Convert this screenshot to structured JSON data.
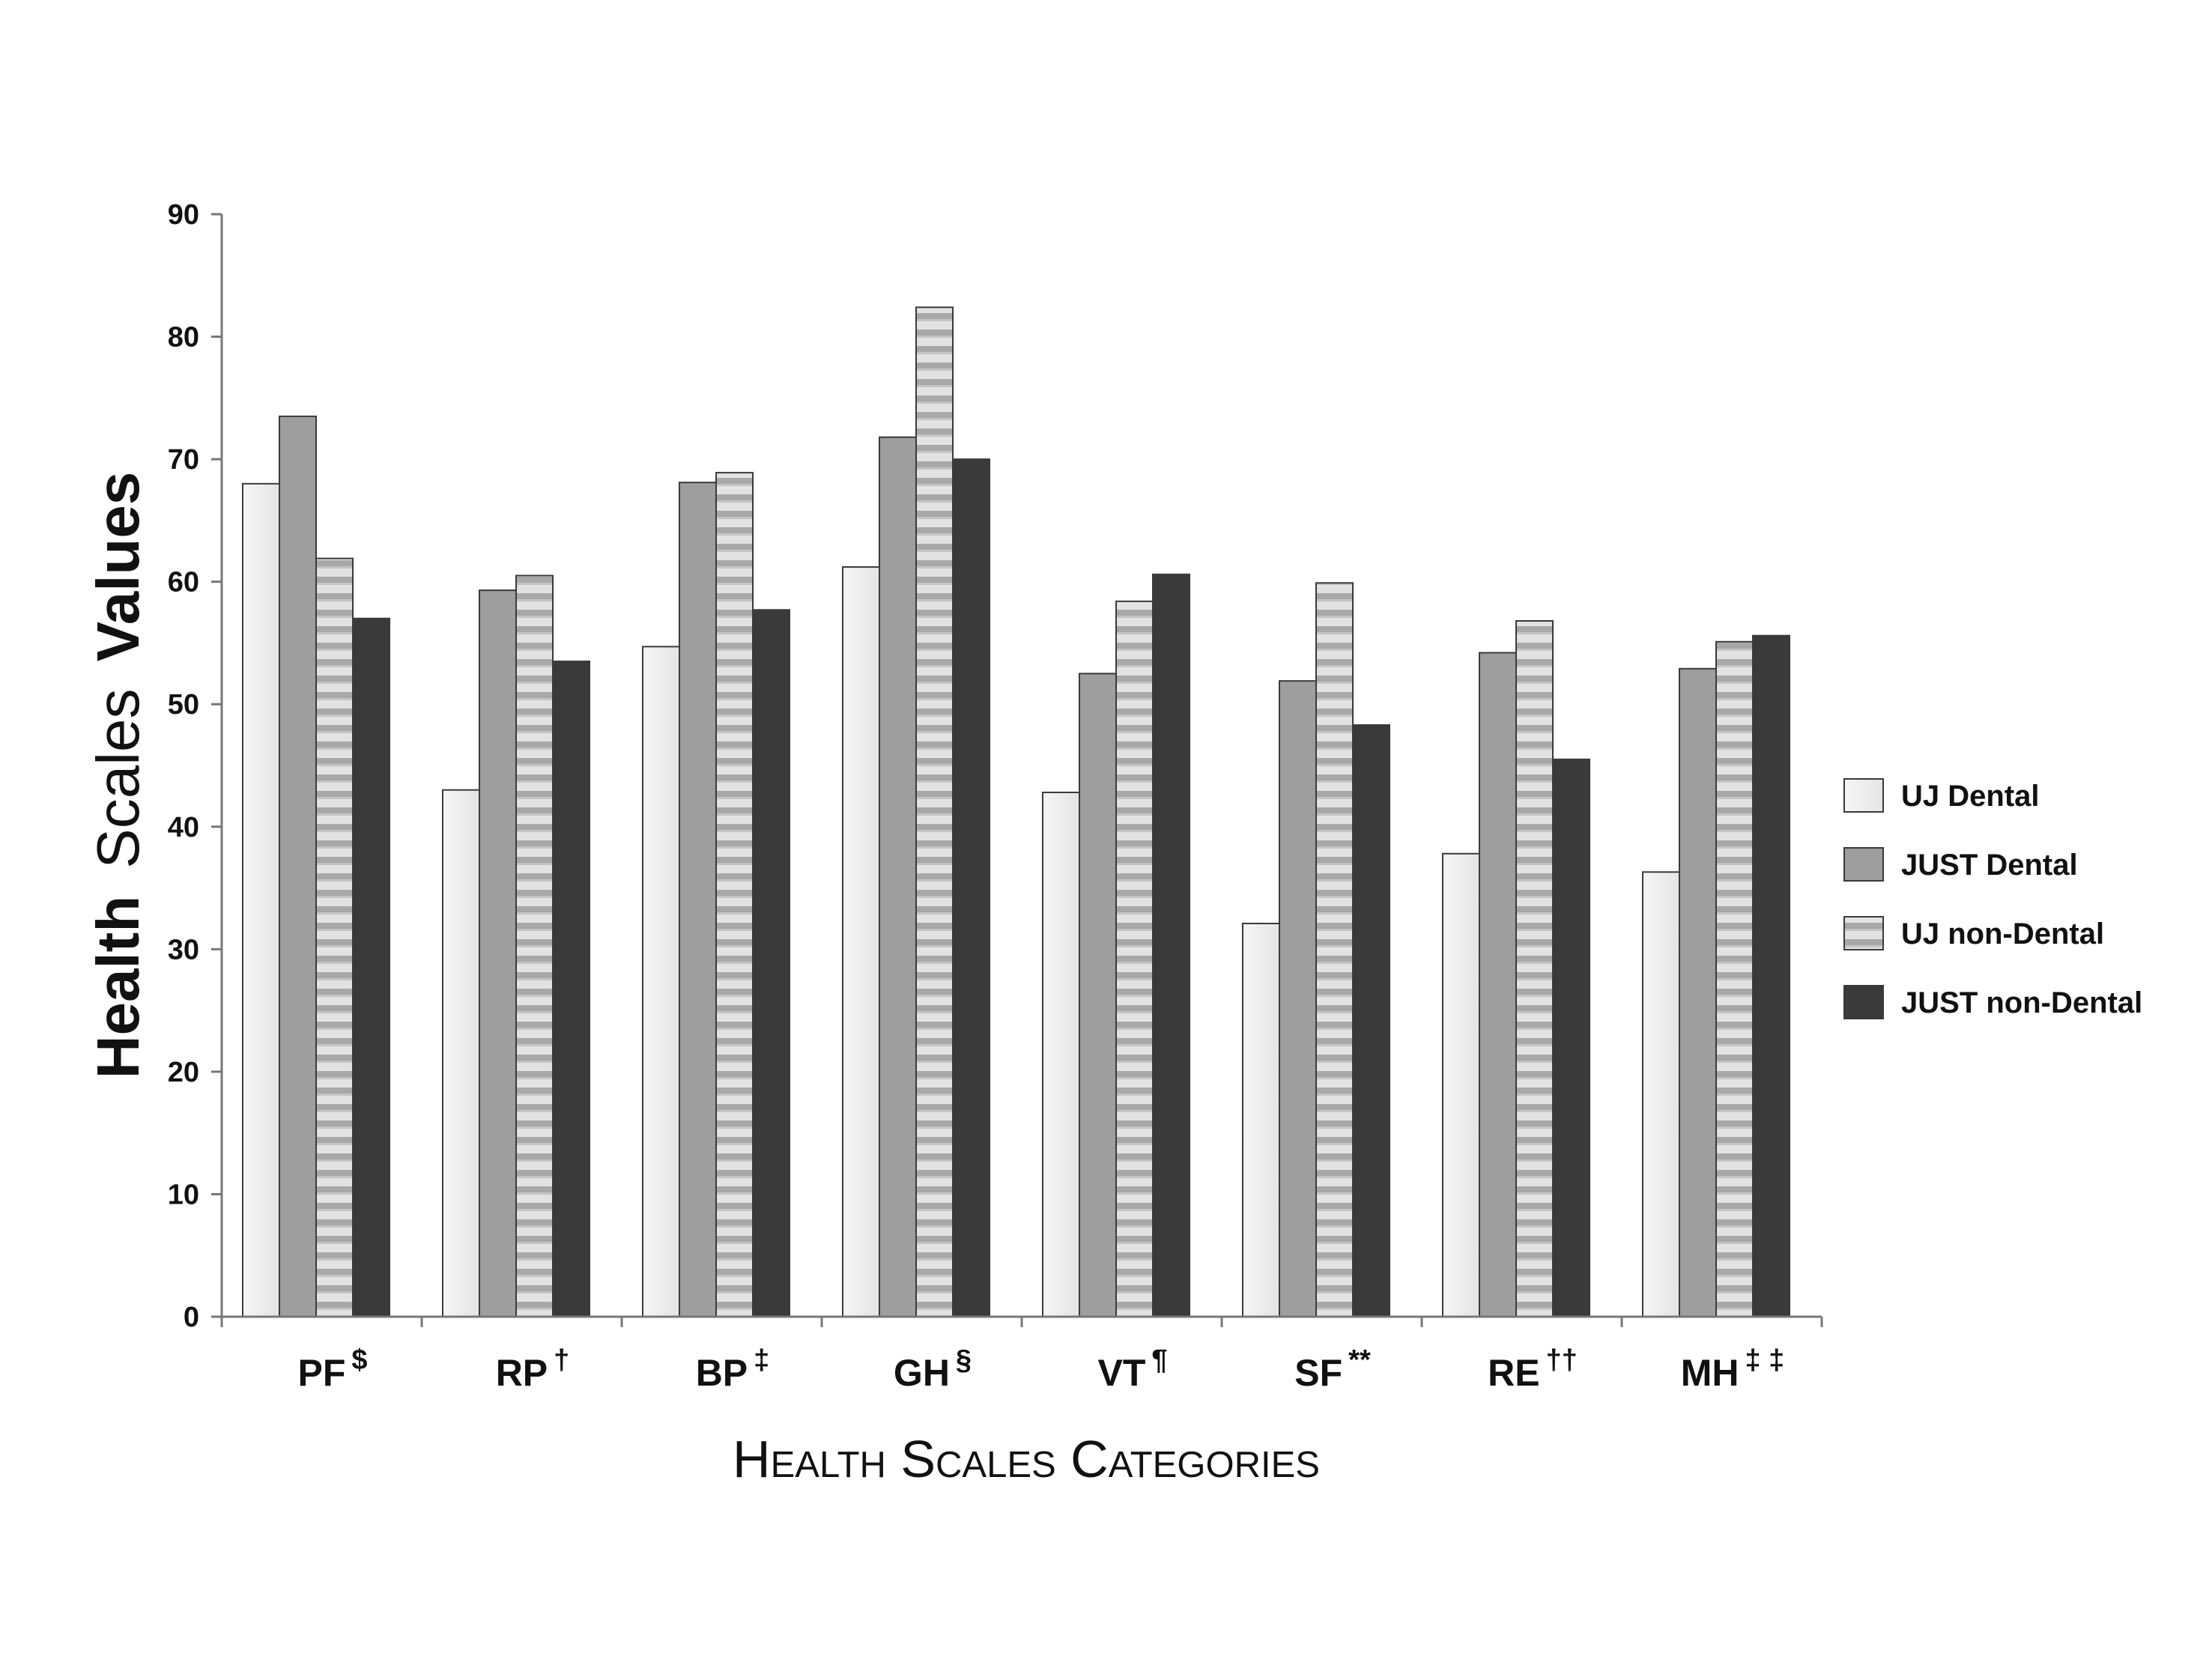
{
  "chart_data": {
    "type": "bar",
    "ylabel_parts": [
      "Health",
      "Scales",
      "Values"
    ],
    "xlabel": "Health Scales Categories",
    "ylim": [
      0,
      90
    ],
    "yticks": [
      0,
      10,
      20,
      30,
      40,
      50,
      60,
      70,
      80,
      90
    ],
    "legend_position": "right",
    "categories": [
      {
        "name": "PF",
        "sup": "$"
      },
      {
        "name": "RP",
        "sup": "†"
      },
      {
        "name": "BP",
        "sup": "‡"
      },
      {
        "name": "GH",
        "sup": "§"
      },
      {
        "name": "VT",
        "sup": "¶"
      },
      {
        "name": "SF",
        "sup": "**"
      },
      {
        "name": "RE",
        "sup": "††"
      },
      {
        "name": "MH",
        "sup": "‡ ‡"
      }
    ],
    "series": [
      {
        "name": "UJ Dental",
        "color": "#ececec",
        "pattern": "light",
        "values": [
          68.0,
          43.0,
          54.7,
          61.2,
          42.8,
          32.1,
          37.8,
          36.3
        ]
      },
      {
        "name": "JUST Dental",
        "color": "#9e9e9e",
        "pattern": "solid",
        "values": [
          73.5,
          59.3,
          68.1,
          71.8,
          52.5,
          51.9,
          54.2,
          52.9
        ]
      },
      {
        "name": "UJ non-Dental",
        "color": "#c8c8c8",
        "pattern": "stripes",
        "values": [
          61.9,
          60.5,
          68.9,
          82.4,
          58.4,
          59.9,
          56.8,
          55.1
        ]
      },
      {
        "name": "JUST non-Dental",
        "color": "#3a3a3a",
        "pattern": "solid",
        "values": [
          57.0,
          53.5,
          57.7,
          70.0,
          60.6,
          48.3,
          45.5,
          55.6
        ]
      }
    ]
  }
}
